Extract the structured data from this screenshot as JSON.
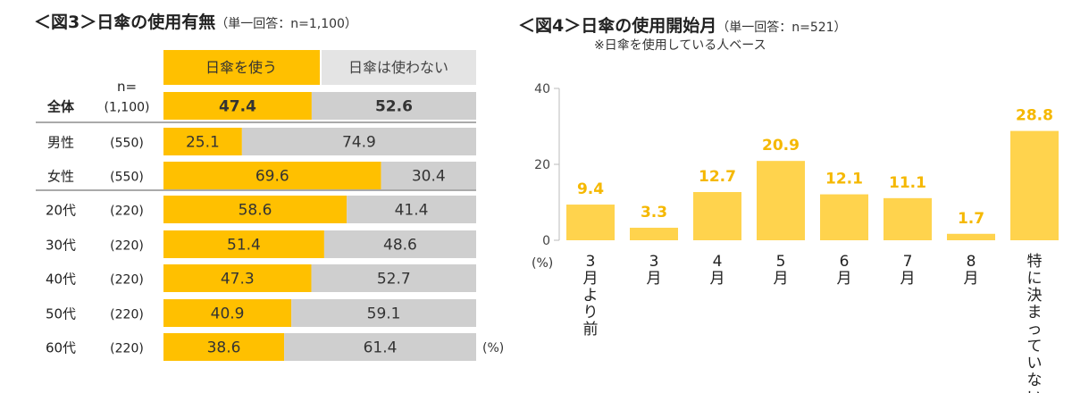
{
  "fig3": {
    "title": "＜図3＞日傘の使用有無",
    "subtitle": "（単一回答：n=1,100）",
    "n_header": "n=",
    "pct_unit": "(%)",
    "colors": {
      "use": "#FFC000",
      "not_use": "#CFCFCF",
      "header_bg": "#E4E4E4"
    },
    "chart_data": {
      "type": "bar",
      "stacked": true,
      "orientation": "horizontal",
      "series_labels": [
        "日傘を使う",
        "日傘は使わない"
      ],
      "rows": [
        {
          "label": "全体",
          "n": "(1,100)",
          "use": 47.4,
          "not_use": 52.6,
          "bold": true
        },
        {
          "label": "男性",
          "n": "(550)",
          "use": 25.1,
          "not_use": 74.9
        },
        {
          "label": "女性",
          "n": "(550)",
          "use": 69.6,
          "not_use": 30.4
        },
        {
          "label": "20代",
          "n": "(220)",
          "use": 58.6,
          "not_use": 41.4
        },
        {
          "label": "30代",
          "n": "(220)",
          "use": 51.4,
          "not_use": 48.6
        },
        {
          "label": "40代",
          "n": "(220)",
          "use": 47.3,
          "not_use": 52.7
        },
        {
          "label": "50代",
          "n": "(220)",
          "use": 40.9,
          "not_use": 59.1
        },
        {
          "label": "60代",
          "n": "(220)",
          "use": 38.6,
          "not_use": 61.4
        }
      ]
    }
  },
  "fig4": {
    "title": "＜図4＞日傘の使用開始月",
    "subtitle": "（単一回答：n=521）",
    "note": "※日傘を使用している人ベース",
    "pct_unit": "(%)",
    "colors": {
      "bar": "#FFD34D",
      "label": "#F5B800"
    },
    "chart_data": {
      "type": "bar",
      "ylim": [
        0,
        40
      ],
      "yticks": [
        0,
        20,
        40
      ],
      "categories": [
        "3月より前",
        "3月",
        "4月",
        "5月",
        "6月",
        "7月",
        "8月",
        "特に決まっていない"
      ],
      "values": [
        9.4,
        3.3,
        12.7,
        20.9,
        12.1,
        11.1,
        1.7,
        28.8
      ]
    }
  }
}
